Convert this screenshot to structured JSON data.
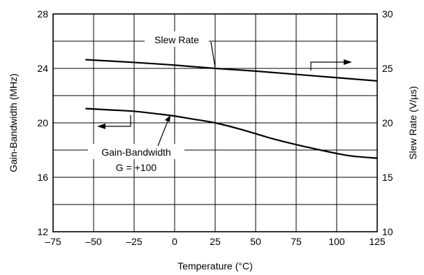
{
  "chart_data": {
    "type": "line",
    "xlabel": "Temperature (°C)",
    "ylabel": "Gain-Bandwidth (MHz)",
    "y2label": "Slew Rate (V/µs)",
    "xlim": [
      -75,
      125
    ],
    "ylim": [
      12,
      28
    ],
    "y2lim": [
      10,
      30
    ],
    "xticks": [
      "–75",
      "–50",
      "–25",
      "0",
      "25",
      "50",
      "75",
      "100",
      "125"
    ],
    "yticks": [
      "12",
      "16",
      "20",
      "24",
      "28"
    ],
    "y2ticks": [
      "10",
      "15",
      "20",
      "25",
      "30"
    ],
    "grid": true,
    "series": [
      {
        "axis": "right",
        "x": [
          -55,
          -25,
          0,
          25,
          50,
          75,
          100,
          125
        ],
        "y": [
          25.8,
          25.55,
          25.3,
          25.0,
          24.75,
          24.45,
          24.15,
          23.85
        ]
      },
      {
        "axis": "left",
        "x": [
          -55,
          -40,
          -25,
          -10,
          0,
          10,
          25,
          40,
          50,
          60,
          75,
          90,
          100,
          110,
          125
        ],
        "y": [
          21.05,
          20.95,
          20.85,
          20.65,
          20.5,
          20.3,
          20.0,
          19.55,
          19.2,
          18.85,
          18.4,
          18.0,
          17.75,
          17.55,
          17.4
        ]
      }
    ],
    "annotations": [
      {
        "text": "Slew Rate"
      },
      {
        "text": "Gain-Bandwidth"
      },
      {
        "text": "G = +100"
      }
    ]
  }
}
